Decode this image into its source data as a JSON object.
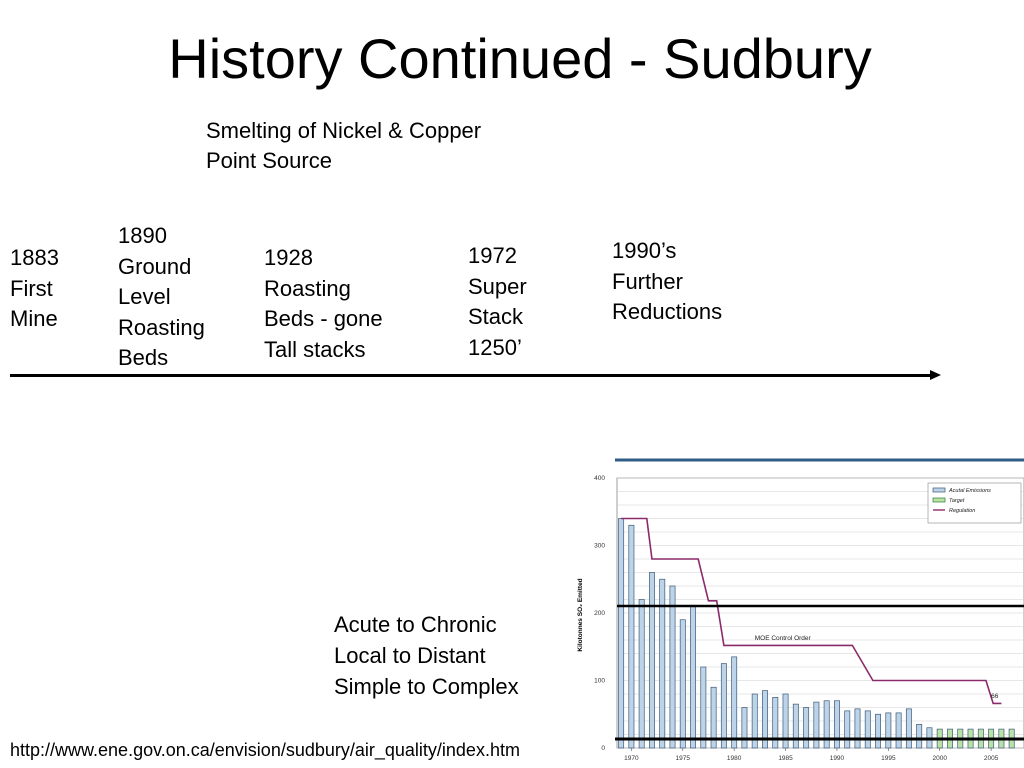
{
  "slide": {
    "title": "History Continued - Sudbury",
    "subtitle_lines": [
      "Smelting of Nickel & Copper",
      "Point Source"
    ],
    "timeline": [
      {
        "lines": [
          "1883",
          "First",
          "Mine"
        ]
      },
      {
        "lines": [
          "1890",
          "Ground",
          "Level",
          "Roasting",
          "Beds"
        ]
      },
      {
        "lines": [
          "1928",
          "Roasting",
          "Beds - gone",
          "Tall stacks"
        ]
      },
      {
        "lines": [
          "1972",
          "Super",
          "Stack",
          "1250’"
        ]
      },
      {
        "lines": [
          "1990’s",
          "Further",
          "Reductions"
        ]
      }
    ],
    "shift_lines": [
      "Acute to Chronic",
      "Local to Distant",
      "Simple to Complex"
    ],
    "url": "http://www.ene.gov.on.ca/envision/sudbury/air_quality/index.htm"
  },
  "chart_data": {
    "type": "bar",
    "ylabel": "Kilotonnes SO₂ Emitted",
    "ylim": [
      0,
      400
    ],
    "yticks": [
      0,
      100,
      200,
      300,
      400
    ],
    "xticks": [
      1970,
      1975,
      1980,
      1985,
      1990,
      1995,
      2000,
      2005
    ],
    "legend": [
      "Acutal Emissions",
      "Target",
      "Regulation"
    ],
    "legend_position": "top-right",
    "grid": true,
    "colors": {
      "actual": "#bcd3e8",
      "target": "#b9e3a6",
      "regulation": "#8b2a6b",
      "bar_border": "#3c5a7a"
    },
    "annotations": [
      {
        "text": "MOE Control Order",
        "x": 1982,
        "y": 160
      },
      {
        "text": "66",
        "x": 2005,
        "y": 74
      }
    ],
    "series": [
      {
        "name": "Acutal Emissions",
        "x": [
          1969,
          1970,
          1971,
          1972,
          1973,
          1974,
          1975,
          1976,
          1977,
          1978,
          1979,
          1980,
          1981,
          1982,
          1983,
          1984,
          1985,
          1986,
          1987,
          1988,
          1989,
          1990,
          1991,
          1992,
          1993,
          1994,
          1995,
          1996,
          1997,
          1998,
          1999
        ],
        "values": [
          340,
          330,
          220,
          260,
          250,
          240,
          190,
          210,
          120,
          90,
          125,
          135,
          60,
          80,
          85,
          75,
          80,
          65,
          60,
          68,
          70,
          70,
          55,
          58,
          55,
          50,
          52,
          52,
          58,
          35,
          30
        ]
      },
      {
        "name": "Target",
        "x": [
          2000,
          2001,
          2002,
          2003,
          2004,
          2005,
          2006,
          2007
        ],
        "values": [
          28,
          28,
          28,
          28,
          28,
          28,
          28,
          28
        ]
      },
      {
        "name": "Regulation",
        "x": [
          1969,
          1971.5,
          1972,
          1976.5,
          1977.5,
          1978.3,
          1979,
          1991.5,
          1993.5,
          2004.5,
          2005.2,
          2006
        ],
        "values": [
          340,
          340,
          280,
          280,
          218,
          218,
          152,
          152,
          100,
          100,
          66,
          66
        ]
      }
    ]
  }
}
